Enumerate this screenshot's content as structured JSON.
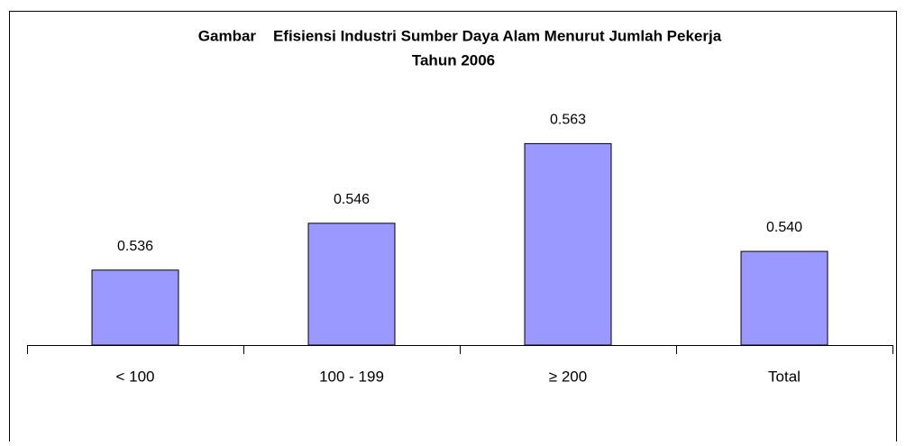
{
  "chart_data": {
    "type": "bar",
    "title": "Gambar    Efisiensi Industri Sumber Daya Alam Menurut Jumlah Pekerja",
    "subtitle": "Tahun 2006",
    "categories": [
      "< 100",
      "100 - 199",
      "≥ 200",
      "Total"
    ],
    "values": [
      0.536,
      0.546,
      0.563,
      0.54
    ],
    "value_labels": [
      "0.536",
      "0.546",
      "0.563",
      "0.540"
    ],
    "color": "#9999ff",
    "ylim": [
      0.52,
      0.57
    ]
  }
}
